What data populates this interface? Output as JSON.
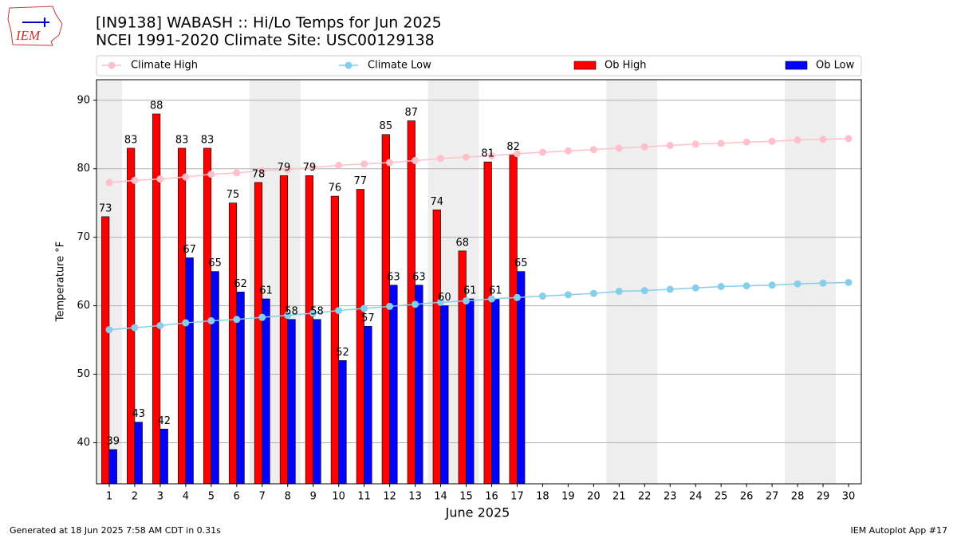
{
  "logo_text": "IEM",
  "footer_left": "Generated at 18 Jun 2025 7:58 AM CDT in 0.31s",
  "footer_right": "IEM Autoplot App #17",
  "chart_data": {
    "type": "bar",
    "title": "[IN9138] WABASH :: Hi/Lo Temps for Jun 2025",
    "subtitle": "NCEI 1991-2020 Climate Site: USC00129138",
    "xlabel": "June 2025",
    "ylabel": "Temperature °F",
    "x": [
      1,
      2,
      3,
      4,
      5,
      6,
      7,
      8,
      9,
      10,
      11,
      12,
      13,
      14,
      15,
      16,
      17,
      18,
      19,
      20,
      21,
      22,
      23,
      24,
      25,
      26,
      27,
      28,
      29,
      30
    ],
    "xlim": [
      0.5,
      30.5
    ],
    "xticks": [
      1,
      2,
      3,
      4,
      5,
      6,
      7,
      8,
      9,
      10,
      11,
      12,
      13,
      14,
      15,
      16,
      17,
      18,
      19,
      20,
      21,
      22,
      23,
      24,
      25,
      26,
      27,
      28,
      29,
      30
    ],
    "ylim": [
      34,
      93
    ],
    "yticks": [
      40,
      50,
      60,
      70,
      80,
      90
    ],
    "grid": true,
    "shaded_days": [
      1,
      7,
      8,
      14,
      15,
      21,
      22,
      28,
      29
    ],
    "series": [
      {
        "name": "Climate High",
        "type": "line",
        "color": "#ffc0cb",
        "values": [
          78.0,
          78.3,
          78.5,
          78.8,
          79.2,
          79.4,
          79.7,
          79.9,
          80.2,
          80.5,
          80.7,
          80.9,
          81.2,
          81.5,
          81.7,
          81.9,
          82.2,
          82.4,
          82.6,
          82.8,
          83.0,
          83.2,
          83.4,
          83.6,
          83.7,
          83.9,
          84.0,
          84.2,
          84.3,
          84.4
        ]
      },
      {
        "name": "Climate Low",
        "type": "line",
        "color": "#87ceeb",
        "values": [
          56.5,
          56.8,
          57.1,
          57.5,
          57.8,
          58.0,
          58.3,
          58.6,
          58.9,
          59.3,
          59.6,
          59.9,
          60.2,
          60.5,
          60.7,
          61.0,
          61.2,
          61.4,
          61.6,
          61.8,
          62.1,
          62.2,
          62.4,
          62.6,
          62.8,
          62.9,
          63.0,
          63.2,
          63.3,
          63.4
        ]
      },
      {
        "name": "Ob High",
        "type": "bar",
        "color": "#ff0000",
        "values": [
          73,
          83,
          88,
          83,
          83,
          75,
          78,
          79,
          79,
          76,
          77,
          85,
          87,
          74,
          68,
          81,
          82,
          null,
          null,
          null,
          null,
          null,
          null,
          null,
          null,
          null,
          null,
          null,
          null,
          null
        ]
      },
      {
        "name": "Ob Low",
        "type": "bar",
        "color": "#0000ff",
        "values": [
          39,
          43,
          42,
          67,
          65,
          62,
          61,
          58,
          58,
          52,
          57,
          63,
          63,
          60,
          61,
          61,
          65,
          null,
          null,
          null,
          null,
          null,
          null,
          null,
          null,
          null,
          null,
          null,
          null,
          null
        ]
      }
    ]
  }
}
